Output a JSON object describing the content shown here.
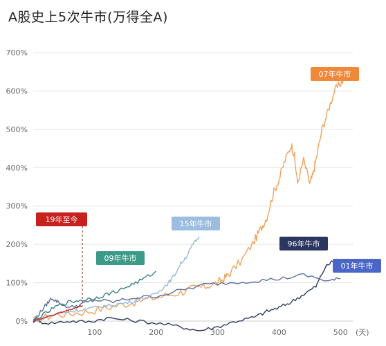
{
  "chart_data": {
    "type": "line",
    "title": "A股史上5次牛市(万得全A)",
    "xlabel": "(天)",
    "ylabel": "",
    "xlim": [
      0,
      520
    ],
    "ylim": [
      0,
      700
    ],
    "x_ticks": [
      100,
      200,
      300,
      400,
      500
    ],
    "x_tick_labels": [
      "100",
      "200",
      "300",
      "400",
      "500"
    ],
    "y_ticks": [
      0,
      100,
      200,
      300,
      400,
      500,
      600,
      700
    ],
    "y_tick_labels": [
      "0%",
      "100%",
      "200%",
      "300%",
      "400%",
      "500%",
      "600%",
      "700%"
    ],
    "grid": "horizontal",
    "series": [
      {
        "name": "07年牛市",
        "color": "#f0a25a",
        "label_box_color": "#f0883a",
        "x": [
          0,
          30,
          60,
          90,
          120,
          150,
          180,
          210,
          240,
          260,
          280,
          300,
          310,
          320,
          340,
          360,
          370,
          380,
          390,
          400,
          410,
          420,
          425,
          430,
          440,
          450,
          455,
          460,
          470,
          480,
          490,
          500,
          510
        ],
        "y": [
          0,
          15,
          20,
          25,
          35,
          45,
          55,
          65,
          75,
          85,
          90,
          100,
          110,
          125,
          160,
          210,
          240,
          270,
          330,
          370,
          420,
          460,
          430,
          360,
          420,
          360,
          380,
          420,
          500,
          550,
          600,
          620,
          640
        ]
      },
      {
        "name": "96年牛市",
        "color": "#2f3a5c",
        "label_box_color": "#2a3560",
        "x": [
          0,
          30,
          60,
          90,
          120,
          160,
          200,
          240,
          270,
          300,
          330,
          360,
          380,
          400,
          420,
          440,
          460,
          475,
          490
        ],
        "y": [
          0,
          -5,
          0,
          -2,
          8,
          2,
          -5,
          -15,
          -25,
          -15,
          0,
          10,
          25,
          35,
          50,
          70,
          90,
          140,
          160
        ]
      },
      {
        "name": "01年牛市",
        "color": "#5c6fa0",
        "label_box_color": "#4a66c8",
        "x": [
          0,
          10,
          20,
          30,
          40,
          60,
          80,
          100,
          130,
          160,
          200,
          240,
          280,
          320,
          360,
          400,
          440,
          480,
          500
        ],
        "y": [
          0,
          20,
          40,
          60,
          50,
          35,
          45,
          55,
          50,
          60,
          65,
          80,
          95,
          100,
          105,
          110,
          120,
          105,
          110
        ]
      },
      {
        "name": "15年牛市",
        "color": "#9ab8d8",
        "label_box_color": "#9cbde0",
        "x": [
          0,
          20,
          40,
          60,
          80,
          100,
          120,
          140,
          160,
          180,
          200,
          210,
          220,
          230,
          240,
          250,
          260,
          270
        ],
        "y": [
          0,
          10,
          20,
          25,
          30,
          35,
          40,
          45,
          50,
          60,
          70,
          85,
          100,
          120,
          150,
          170,
          200,
          220
        ]
      },
      {
        "name": "09年牛市",
        "color": "#3a7f80",
        "label_box_color": "#3c9a88",
        "x": [
          0,
          20,
          40,
          60,
          80,
          100,
          120,
          140,
          160,
          180,
          200
        ],
        "y": [
          0,
          20,
          40,
          50,
          55,
          60,
          70,
          80,
          95,
          110,
          130
        ]
      },
      {
        "name": "19年至今",
        "color": "#c0302c",
        "label_box_color": "#c8201c",
        "x": [
          0,
          10,
          20,
          30,
          40,
          50,
          60,
          70,
          75,
          80
        ],
        "y": [
          0,
          5,
          10,
          15,
          20,
          25,
          30,
          35,
          38,
          40
        ]
      }
    ]
  }
}
